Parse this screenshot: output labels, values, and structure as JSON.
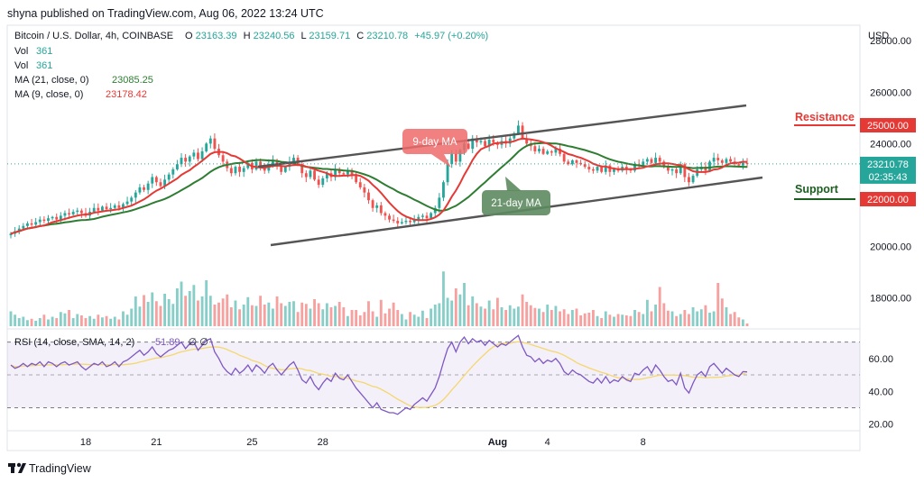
{
  "header": {
    "published": "shyna published on TradingView.com, Aug 06, 2022 13:24 UTC"
  },
  "legend": {
    "symbol": "Bitcoin / U.S. Dollar, 4h, COINBASE",
    "o_label": "O",
    "o": "23163.39",
    "h_label": "H",
    "h": "23240.56",
    "l_label": "L",
    "l": "23159.71",
    "c_label": "C",
    "c": "23210.78",
    "change": "+45.97 (+0.20%)",
    "vol1": "Vol",
    "vol1_val": "361",
    "vol2": "Vol",
    "vol2_val": "361",
    "ma21": "MA (21, close, 0)",
    "ma21_val": "23085.25",
    "ma9": "MA (9, close, 0)",
    "ma9_val": "23178.42"
  },
  "price_axis": {
    "currency": "USD",
    "last_price": "23210.78",
    "countdown": "02:35:43"
  },
  "annotations": {
    "resistance": "Resistance",
    "resistance_level": "25000.00",
    "support": "Support",
    "support_level": "22000.00",
    "ma9_label": "9-day MA",
    "ma21_label": "21-day MA"
  },
  "rsi": {
    "legend": "RSI (14, close, SMA, 14, 2)",
    "value": "51.89",
    "extra": "∅  ∅"
  },
  "footer": {
    "brand": "TradingView"
  },
  "colors": {
    "up": "#26a69a",
    "down": "#ef5350",
    "ma9": "#e53935",
    "ma21": "#2e7d32",
    "rsi": "#7e57c2",
    "rsi_ma": "#f5d76e",
    "resistance": "#e53935",
    "support": "#1b5e20",
    "channel": "#555555"
  },
  "chart_data": {
    "type": "candlestick",
    "ylim": [
      16800,
      28600
    ],
    "y_ticks": [
      "28000.00",
      "26000.00",
      "24000.00",
      "20000.00",
      "18000.00"
    ],
    "x_ticks": [
      "18",
      "21",
      "25",
      "28",
      "Aug",
      "4",
      "8"
    ],
    "rsi_ticks": [
      "60.00",
      "40.00",
      "20.00"
    ],
    "rsi_ylim": [
      16,
      78
    ],
    "rsi_bands": [
      70,
      50,
      30
    ],
    "closes": [
      20500,
      20600,
      20700,
      20800,
      20900,
      20850,
      20950,
      21050,
      21000,
      21100,
      21150,
      21050,
      21200,
      21300,
      21250,
      21350,
      21400,
      21300,
      21200,
      21350,
      21500,
      21400,
      21550,
      21450,
      21500,
      21600,
      21500,
      21650,
      21750,
      21900,
      22100,
      22300,
      22200,
      22450,
      22700,
      22500,
      22350,
      22600,
      22800,
      23000,
      23200,
      23450,
      23300,
      23500,
      23650,
      23400,
      23700,
      24000,
      24200,
      23800,
      23550,
      23300,
      23050,
      22850,
      23100,
      22900,
      23050,
      23250,
      23000,
      23300,
      23150,
      22950,
      23200,
      23350,
      23100,
      22900,
      23100,
      23300,
      23450,
      23200,
      22850,
      22700,
      22950,
      22600,
      22400,
      22650,
      22850,
      22700,
      23000,
      22850,
      22800,
      22950,
      22750,
      22500,
      22300,
      22100,
      21800,
      21500,
      21600,
      21300,
      21200,
      21050,
      21000,
      20900,
      20950,
      21000,
      20950,
      21050,
      21150,
      21200,
      21100,
      21300,
      21500,
      21900,
      22500,
      23200,
      23600,
      23300,
      23750,
      24000,
      23800,
      24200,
      24050,
      24100,
      23900,
      24150,
      24050,
      23950,
      24100,
      24000,
      24200,
      24400,
      24700,
      24200,
      24000,
      23900,
      23700,
      23800,
      23600,
      23700,
      23650,
      23800,
      23600,
      23300,
      23200,
      23350,
      23250,
      23200,
      23100,
      23000,
      22950,
      23100,
      22900,
      23150,
      22900,
      23000,
      22950,
      23100,
      23000,
      22950,
      23200,
      23150,
      23300,
      23400,
      23250,
      23450,
      23300,
      23100,
      22950,
      23000,
      22850,
      23200,
      22700,
      22500,
      22750,
      23000,
      23100,
      22950,
      23300,
      23450,
      23350,
      23250,
      23400,
      23300,
      23200,
      23150,
      23250,
      23210.78
    ],
    "volumes": [
      0.22,
      0.17,
      0.12,
      0.14,
      0.09,
      0.11,
      0.08,
      0.12,
      0.17,
      0.1,
      0.14,
      0.12,
      0.21,
      0.19,
      0.24,
      0.12,
      0.18,
      0.16,
      0.12,
      0.15,
      0.11,
      0.17,
      0.13,
      0.15,
      0.11,
      0.14,
      0.1,
      0.22,
      0.17,
      0.26,
      0.44,
      0.29,
      0.46,
      0.36,
      0.5,
      0.37,
      0.3,
      0.48,
      0.4,
      0.33,
      0.56,
      0.66,
      0.45,
      0.52,
      0.61,
      0.38,
      0.44,
      0.68,
      0.45,
      0.32,
      0.35,
      0.41,
      0.47,
      0.28,
      0.38,
      0.25,
      0.32,
      0.43,
      0.31,
      0.3,
      0.45,
      0.32,
      0.35,
      0.26,
      0.44,
      0.34,
      0.3,
      0.36,
      0.37,
      0.21,
      0.35,
      0.33,
      0.26,
      0.4,
      0.34,
      0.25,
      0.34,
      0.28,
      0.3,
      0.36,
      0.28,
      0.15,
      0.24,
      0.24,
      0.16,
      0.21,
      0.37,
      0.22,
      0.14,
      0.39,
      0.19,
      0.26,
      0.35,
      0.24,
      0.18,
      0.1,
      0.21,
      0.17,
      0.14,
      0.23,
      0.12,
      0.26,
      0.32,
      0.34,
      0.81,
      0.42,
      0.38,
      0.56,
      0.47,
      0.64,
      0.31,
      0.44,
      0.34,
      0.29,
      0.26,
      0.38,
      0.25,
      0.42,
      0.28,
      0.24,
      0.31,
      0.26,
      0.29,
      0.47,
      0.36,
      0.31,
      0.27,
      0.26,
      0.21,
      0.32,
      0.24,
      0.3,
      0.22,
      0.25,
      0.18,
      0.24,
      0.26,
      0.16,
      0.19,
      0.2,
      0.24,
      0.15,
      0.12,
      0.22,
      0.17,
      0.14,
      0.18,
      0.17,
      0.16,
      0.15,
      0.24,
      0.21,
      0.18,
      0.39,
      0.22,
      0.32,
      0.58,
      0.34,
      0.23,
      0.22,
      0.15,
      0.18,
      0.24,
      0.18,
      0.28,
      0.22,
      0.25,
      0.31,
      0.2,
      0.22,
      0.64,
      0.41,
      0.28,
      0.18,
      0.21,
      0.13,
      0.1,
      0.04
    ],
    "rsi_values": [
      56,
      54,
      55,
      57,
      55,
      57,
      56,
      58,
      55,
      58,
      57,
      55,
      57,
      58,
      56,
      57,
      58,
      55,
      53,
      55,
      57,
      56,
      58,
      55,
      56,
      58,
      55,
      58,
      59,
      61,
      63,
      65,
      62,
      64,
      67,
      63,
      61,
      63,
      65,
      66,
      68,
      70,
      66,
      69,
      70,
      65,
      68,
      71,
      72,
      64,
      60,
      55,
      52,
      50,
      54,
      51,
      53,
      56,
      52,
      56,
      54,
      51,
      55,
      57,
      53,
      50,
      53,
      56,
      58,
      53,
      47,
      45,
      49,
      44,
      41,
      45,
      48,
      46,
      51,
      48,
      47,
      50,
      46,
      42,
      39,
      36,
      33,
      30,
      33,
      29,
      28,
      27,
      27,
      26,
      28,
      30,
      29,
      32,
      34,
      36,
      34,
      38,
      42,
      49,
      58,
      66,
      70,
      64,
      70,
      73,
      69,
      72,
      70,
      71,
      68,
      71,
      69,
      67,
      69,
      68,
      70,
      72,
      74,
      67,
      62,
      61,
      58,
      60,
      57,
      59,
      58,
      60,
      57,
      52,
      50,
      53,
      51,
      50,
      48,
      46,
      45,
      48,
      45,
      49,
      45,
      47,
      46,
      49,
      47,
      46,
      51,
      50,
      53,
      55,
      51,
      56,
      53,
      49,
      46,
      47,
      44,
      51,
      42,
      39,
      45,
      50,
      52,
      49,
      55,
      57,
      54,
      51,
      54,
      52,
      50,
      49,
      52,
      51.89
    ]
  }
}
